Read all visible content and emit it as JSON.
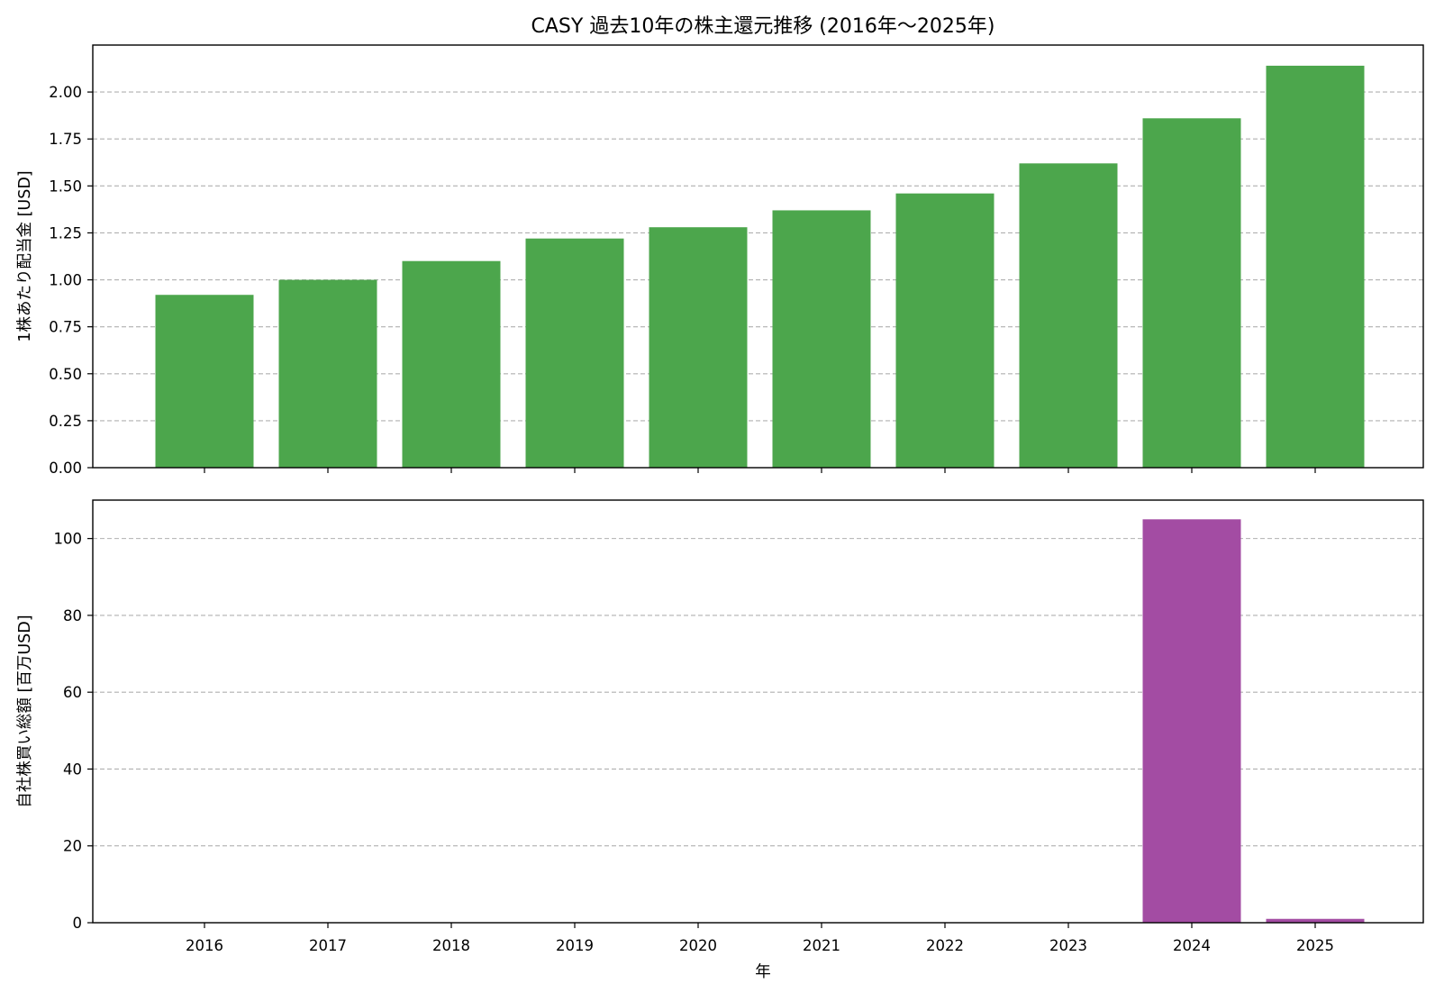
{
  "chart_data": {
    "title": "CASY 過去10年の株主還元推移 (2016年〜2025年)",
    "xlabel": "年",
    "categories": [
      "2016",
      "2017",
      "2018",
      "2019",
      "2020",
      "2021",
      "2022",
      "2023",
      "2024",
      "2025"
    ],
    "grid": "horizontal dashed",
    "charts": [
      {
        "type": "bar",
        "ylabel": "1株あたり配当金 [USD]",
        "ylim": [
          0,
          2.25
        ],
        "yticks": [
          "0.00",
          "0.25",
          "0.50",
          "0.75",
          "1.00",
          "1.25",
          "1.50",
          "1.75",
          "2.00"
        ],
        "color": "#4ca64c",
        "values": [
          0.92,
          1.0,
          1.1,
          1.22,
          1.28,
          1.37,
          1.46,
          1.62,
          1.86,
          2.14
        ]
      },
      {
        "type": "bar",
        "ylabel": "自社株買い総額 [百万USD]",
        "ylim": [
          0,
          110
        ],
        "yticks": [
          "0",
          "20",
          "40",
          "60",
          "80",
          "100"
        ],
        "color": "#a34ca3",
        "values": [
          0,
          0,
          0,
          0,
          0,
          0,
          0,
          0,
          105.0,
          1.0
        ]
      }
    ]
  }
}
